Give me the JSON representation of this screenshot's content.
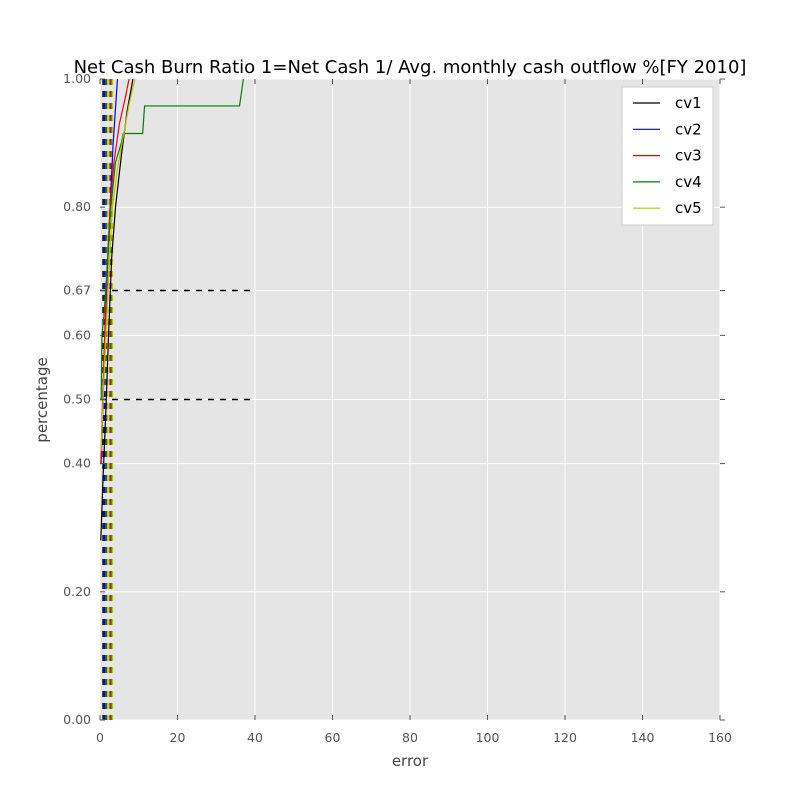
{
  "chart_data": {
    "type": "line",
    "title": "Net Cash Burn Ratio 1=Net Cash 1/ Avg. monthly cash outflow %[FY 2010]",
    "xlabel": "error",
    "ylabel": "percentage",
    "xlim": [
      0,
      160
    ],
    "ylim": [
      0.0,
      1.0
    ],
    "xticks": [
      0,
      20,
      40,
      60,
      80,
      100,
      120,
      140,
      160
    ],
    "xtick_labels": [
      "0",
      "20",
      "40",
      "60",
      "80",
      "100",
      "120",
      "140",
      "160"
    ],
    "yticks": [
      0.0,
      0.2,
      0.4,
      0.5,
      0.6,
      0.67,
      0.8,
      1.0
    ],
    "ytick_labels": [
      "0.00",
      "0.20",
      "0.40",
      "0.50",
      "0.60",
      "0.67",
      "0.80",
      "1.00"
    ],
    "grid": true,
    "background": "#e5e5e5",
    "legend_position": "top-right",
    "series": [
      {
        "name": "cv1",
        "color": "#000000",
        "x": [
          0.2,
          0.8,
          1.5,
          2.2,
          3.0,
          4.0,
          5.5,
          7.0,
          8.5
        ],
        "y": [
          0.28,
          0.38,
          0.48,
          0.6,
          0.72,
          0.8,
          0.88,
          0.95,
          1.0
        ]
      },
      {
        "name": "cv2",
        "color": "#0000ff",
        "x": [
          0.3,
          0.8,
          1.3,
          1.9,
          2.6,
          3.4,
          4.5
        ],
        "y": [
          0.4,
          0.5,
          0.6,
          0.7,
          0.8,
          0.9,
          1.0
        ]
      },
      {
        "name": "cv3",
        "color": "#ff0000",
        "x": [
          0.2,
          0.7,
          1.2,
          1.8,
          2.6,
          3.6,
          5.0,
          6.5,
          7.5
        ],
        "y": [
          0.4,
          0.5,
          0.6,
          0.7,
          0.8,
          0.87,
          0.93,
          0.97,
          1.0
        ]
      },
      {
        "name": "cv4",
        "color": "#008000",
        "x": [
          0.3,
          0.5,
          1.0,
          1.8,
          2.8,
          4.0,
          5.5,
          6.0,
          11.0,
          11.5,
          36.0,
          37.0
        ],
        "y": [
          0.5,
          0.6,
          0.63,
          0.7,
          0.8,
          0.87,
          0.9,
          0.915,
          0.915,
          0.958,
          0.958,
          1.0
        ]
      },
      {
        "name": "cv5",
        "color": "#bfbf00",
        "x": [
          0.3,
          0.8,
          1.5,
          2.3,
          3.2,
          4.5,
          6.0,
          7.5,
          9.0
        ],
        "y": [
          0.42,
          0.5,
          0.6,
          0.7,
          0.8,
          0.86,
          0.91,
          0.96,
          1.0
        ]
      }
    ],
    "reference_lines": [
      {
        "orientation": "horizontal",
        "y": 0.67,
        "x": [
          0,
          40
        ],
        "style": "dashed",
        "color": "#000000"
      },
      {
        "orientation": "horizontal",
        "y": 0.5,
        "x": [
          0,
          40
        ],
        "style": "dashed",
        "color": "#000000"
      },
      {
        "orientation": "vertical",
        "x": 0.8,
        "style": "dashed",
        "color": "#000000"
      },
      {
        "orientation": "vertical",
        "x": 1.2,
        "style": "dashed",
        "color": "#0000ff"
      },
      {
        "orientation": "vertical",
        "x": 1.6,
        "style": "dashed",
        "color": "#008000"
      },
      {
        "orientation": "vertical",
        "x": 2.0,
        "style": "dashed",
        "color": "#bfbf00"
      },
      {
        "orientation": "vertical",
        "x": 2.6,
        "style": "dashed",
        "color": "#ff0000"
      },
      {
        "orientation": "vertical",
        "x": 2.9,
        "style": "dashed",
        "color": "#008000"
      },
      {
        "orientation": "vertical",
        "x": 3.2,
        "style": "dashed",
        "color": "#bfbf00"
      }
    ]
  }
}
